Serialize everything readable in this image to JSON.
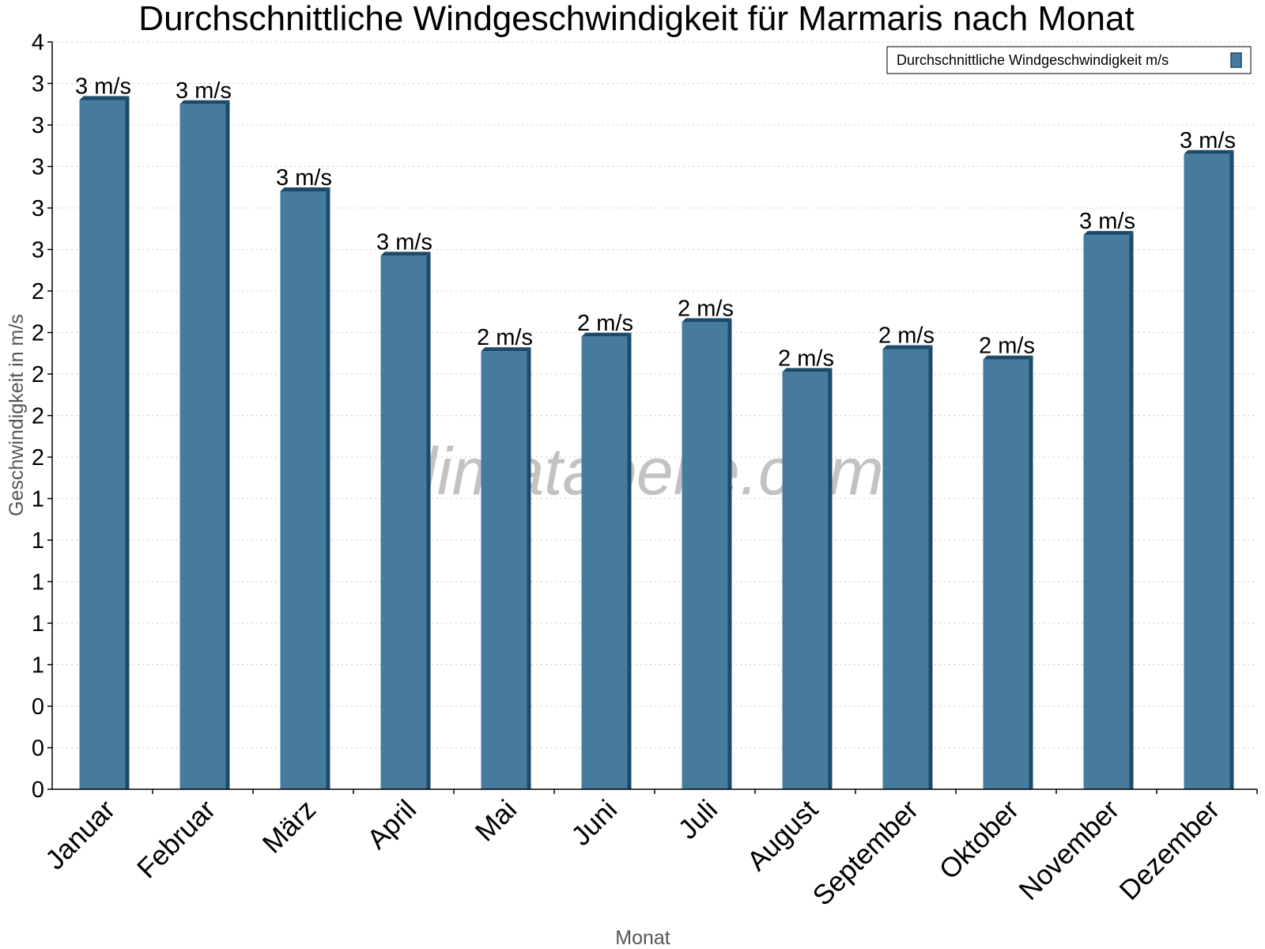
{
  "chart_data": {
    "type": "bar",
    "title": "Durchschnittliche Windgeschwindigkeit für Marmaris nach Monat",
    "xlabel": "Monat",
    "ylabel": "Geschwindigkeit in m/s",
    "ylim": [
      0,
      3.6
    ],
    "y_tick_values": [
      0,
      0.2,
      0.4,
      0.6,
      0.8,
      1.0,
      1.2,
      1.4,
      1.6,
      1.8,
      2.0,
      2.2,
      2.4,
      2.6,
      2.8,
      3.0,
      3.2,
      3.4,
      3.6
    ],
    "y_tick_labels": [
      "0",
      "0",
      "0",
      "1",
      "1",
      "1",
      "1",
      "1",
      "2",
      "2",
      "2",
      "2",
      "2",
      "3",
      "3",
      "3",
      "3",
      "3",
      "4"
    ],
    "categories": [
      "Januar",
      "Februar",
      "März",
      "April",
      "Mai",
      "Juni",
      "Juli",
      "August",
      "September",
      "Oktober",
      "November",
      "Dezember"
    ],
    "series": [
      {
        "name": "Durchschnittliche Windgeschwindigkeit m/s",
        "color": "#467b9e",
        "values": [
          3.32,
          3.3,
          2.88,
          2.57,
          2.11,
          2.18,
          2.25,
          2.01,
          2.12,
          2.07,
          2.67,
          3.06
        ],
        "labels": [
          "3 m/s",
          "3 m/s",
          "3 m/s",
          "3 m/s",
          "2 m/s",
          "2 m/s",
          "2 m/s",
          "2 m/s",
          "2 m/s",
          "2 m/s",
          "3 m/s",
          "3 m/s"
        ]
      }
    ],
    "legend_position": "top-right",
    "grid": true,
    "watermark": "klimatabelle.com"
  }
}
